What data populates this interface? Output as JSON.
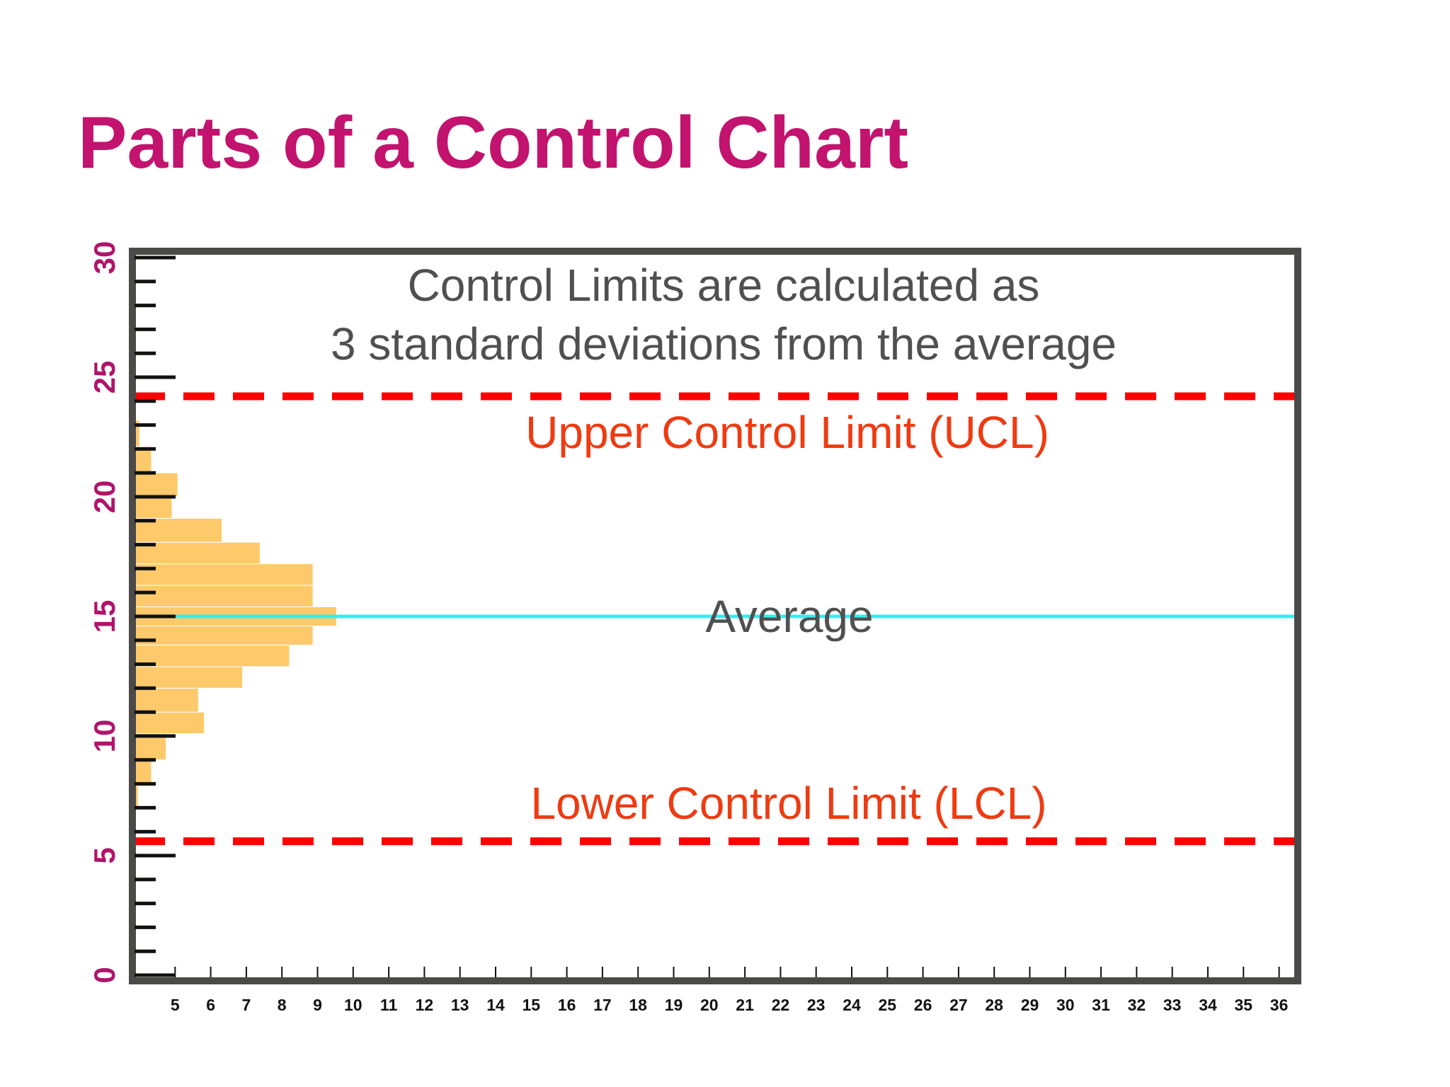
{
  "slide": {
    "title": "Parts of a Control Chart",
    "title_color": "#c2136e",
    "background_color": "#ffffff"
  },
  "chart_data": {
    "type": "bar",
    "orientation": "horizontal histogram with control lines",
    "title": "",
    "xlabel": "",
    "ylabel": "",
    "xlim": [
      4,
      37
    ],
    "ylim": [
      0,
      30
    ],
    "x_ticks": [
      "5",
      "6",
      "7",
      "8",
      "9",
      "10",
      "11",
      "12",
      "13",
      "14",
      "15",
      "16",
      "17",
      "18",
      "19",
      "20",
      "21",
      "22",
      "23",
      "24",
      "25",
      "26",
      "27",
      "28",
      "29",
      "30",
      "31",
      "32",
      "33",
      "34",
      "35",
      "36"
    ],
    "y_ticks": [
      "0",
      "5",
      "10",
      "15",
      "20",
      "25",
      "30"
    ],
    "histogram": {
      "color": "#fdc96a",
      "bins": [
        {
          "y_low": 7.0,
          "y_high": 7.9,
          "count": 0.15
        },
        {
          "y_low": 7.9,
          "y_high": 9.0,
          "count": 0.6
        },
        {
          "y_low": 9.0,
          "y_high": 10.1,
          "count": 1.1
        },
        {
          "y_low": 10.1,
          "y_high": 11.0,
          "count": 2.4
        },
        {
          "y_low": 11.0,
          "y_high": 12.0,
          "count": 2.2
        },
        {
          "y_low": 12.0,
          "y_high": 12.9,
          "count": 3.7
        },
        {
          "y_low": 12.9,
          "y_high": 13.8,
          "count": 5.3
        },
        {
          "y_low": 13.8,
          "y_high": 14.6,
          "count": 6.1
        },
        {
          "y_low": 14.6,
          "y_high": 15.4,
          "count": 6.9
        },
        {
          "y_low": 15.4,
          "y_high": 16.3,
          "count": 6.1
        },
        {
          "y_low": 16.3,
          "y_high": 17.2,
          "count": 6.1
        },
        {
          "y_low": 17.2,
          "y_high": 18.1,
          "count": 4.3
        },
        {
          "y_low": 18.1,
          "y_high": 19.1,
          "count": 3.0
        },
        {
          "y_low": 19.1,
          "y_high": 20.0,
          "count": 1.3
        },
        {
          "y_low": 20.0,
          "y_high": 21.0,
          "count": 1.5
        },
        {
          "y_low": 21.0,
          "y_high": 22.1,
          "count": 0.6
        },
        {
          "y_low": 22.1,
          "y_high": 23.2,
          "count": 0.2
        }
      ]
    },
    "lines": {
      "ucl": {
        "y": 24.2,
        "label": "Upper Control Limit (UCL)",
        "color": "#ff0000",
        "style": "dashed"
      },
      "average": {
        "y": 15.0,
        "label": "Average",
        "color": "#33eeee",
        "style": "solid"
      },
      "lcl": {
        "y": 5.6,
        "label": "Lower Control Limit (LCL)",
        "color": "#ff0000",
        "style": "dashed"
      }
    },
    "annotation": {
      "line1": "Control Limits are calculated as",
      "line2": "3 standard deviations from the average"
    },
    "colors": {
      "frame": "#4a4a48",
      "label_text": "#505050",
      "limit_text": "#ee3b12",
      "y_tick_labels": "#b0146a",
      "x_tick_labels": "#111111",
      "ticks": "#111111"
    },
    "grid": false
  }
}
